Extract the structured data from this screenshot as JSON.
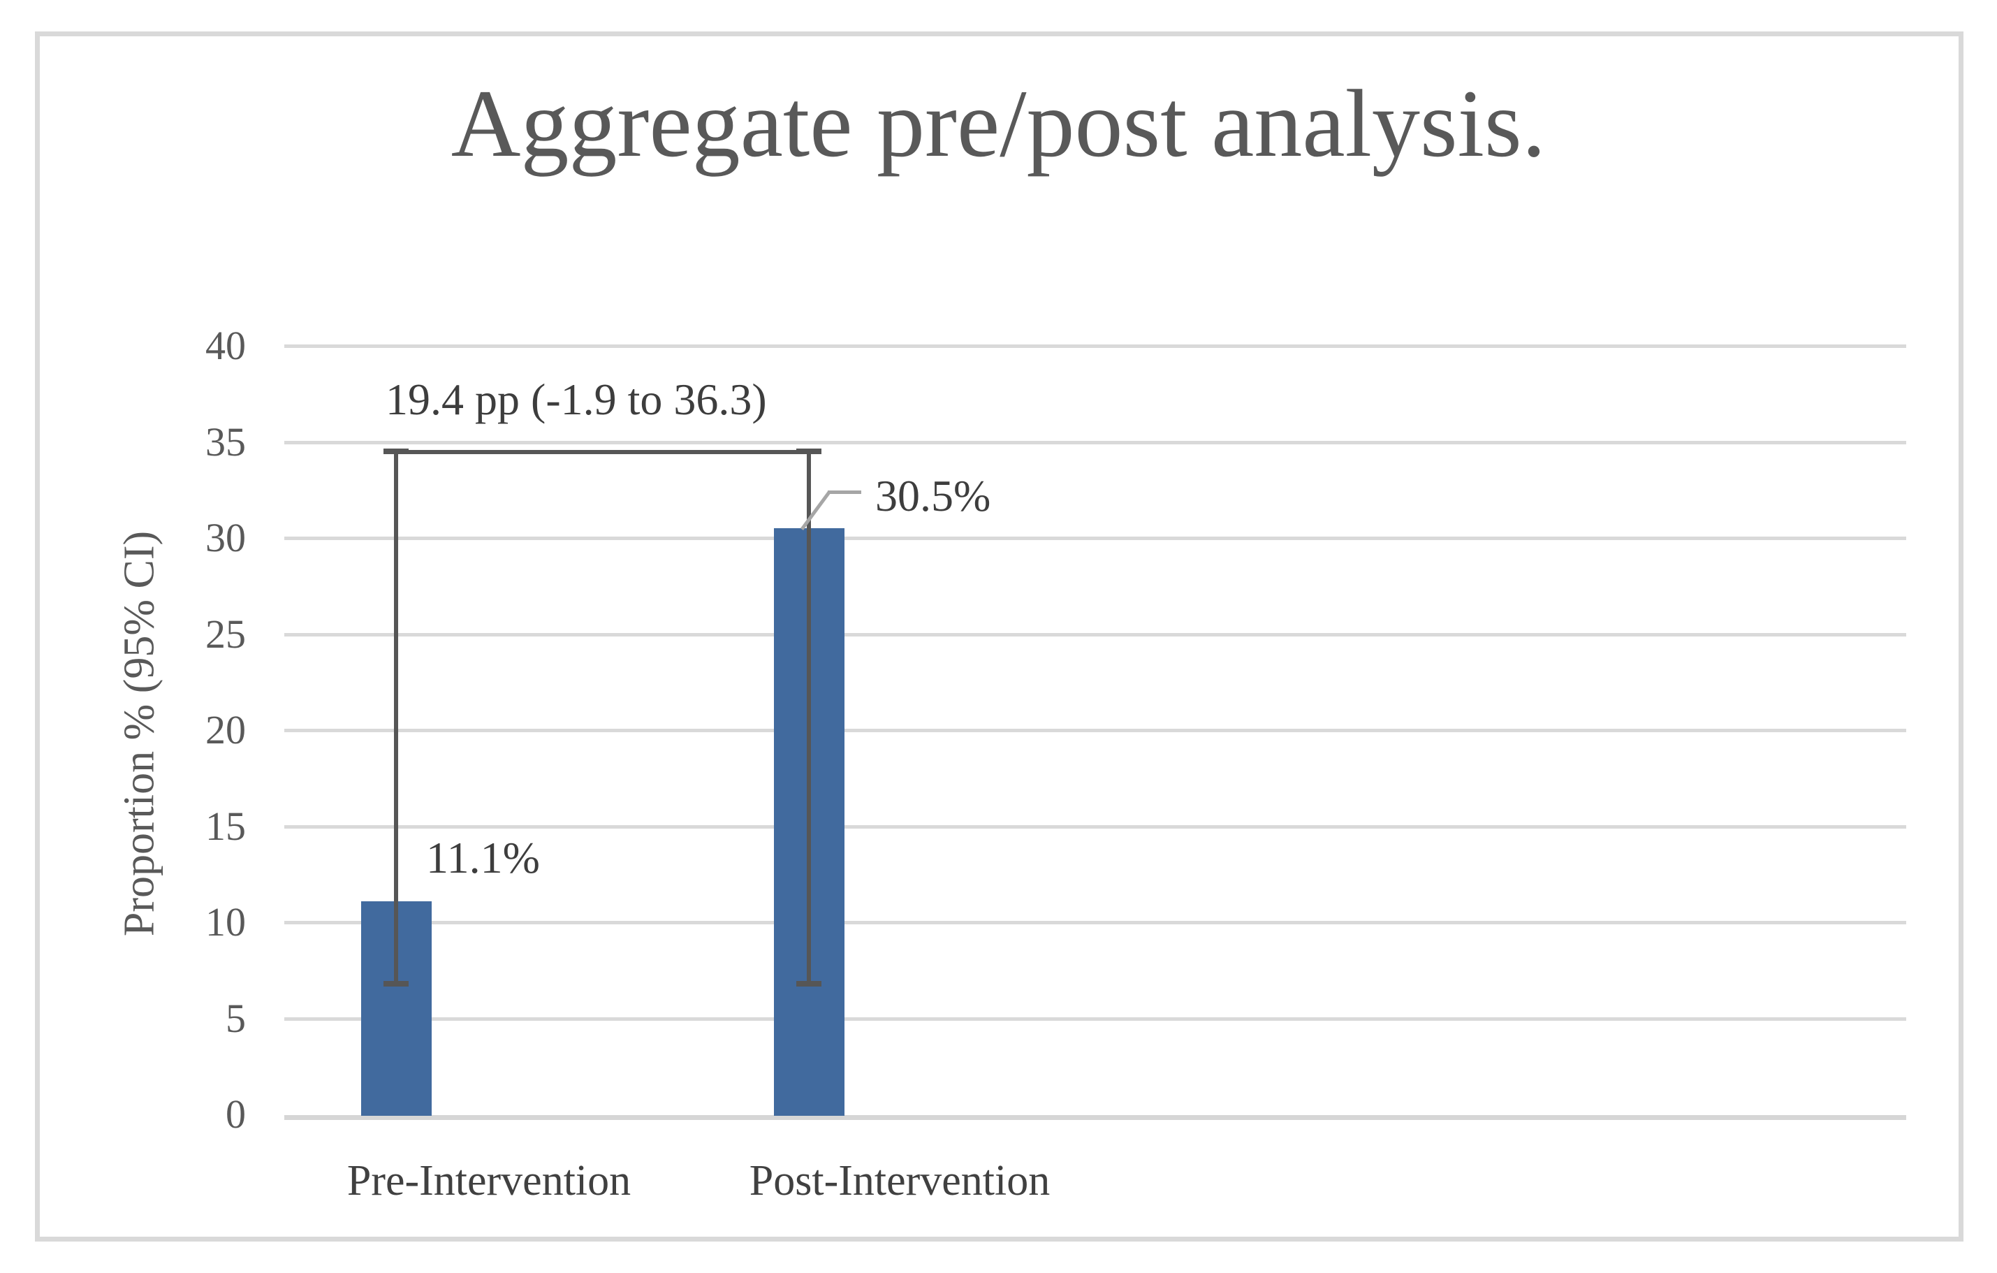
{
  "title": "Aggregate pre/post analysis.",
  "chart_data": {
    "type": "bar",
    "categories": [
      "Pre-Intervention",
      "Post-Intervention"
    ],
    "values": [
      11.1,
      30.5
    ],
    "data_labels": [
      "11.1%",
      "30.5%"
    ],
    "title": "Aggregate pre/post analysis.",
    "xlabel": "",
    "ylabel": "Proportion % (95% CI)",
    "ylim": [
      0,
      40
    ],
    "yticks": [
      0,
      5,
      10,
      15,
      20,
      25,
      30,
      35,
      40
    ],
    "grid": true,
    "legend": false,
    "error_bracket": {
      "label": "19.4 pp (-1.9 to 36.3)",
      "difference_pp": 19.4,
      "ci_low_pp": -1.9,
      "ci_high_pp": 36.3,
      "whisker_top_value": 34.5,
      "whisker_bottom_value": 6.8,
      "connects": [
        "Pre-Intervention",
        "Post-Intervention"
      ]
    }
  },
  "colors": {
    "bar_fill": "#416a9e",
    "gridline": "#d9d9d9",
    "axis_line": "#d6d6d6",
    "frame_border": "#d9d9d9",
    "title_text": "#595959",
    "tick_text": "#595959",
    "category_text": "#404040",
    "data_label_text": "#3d3d3d",
    "error_bar": "#565656",
    "leader_line": "#a6a6a6",
    "background": "#ffffff"
  }
}
